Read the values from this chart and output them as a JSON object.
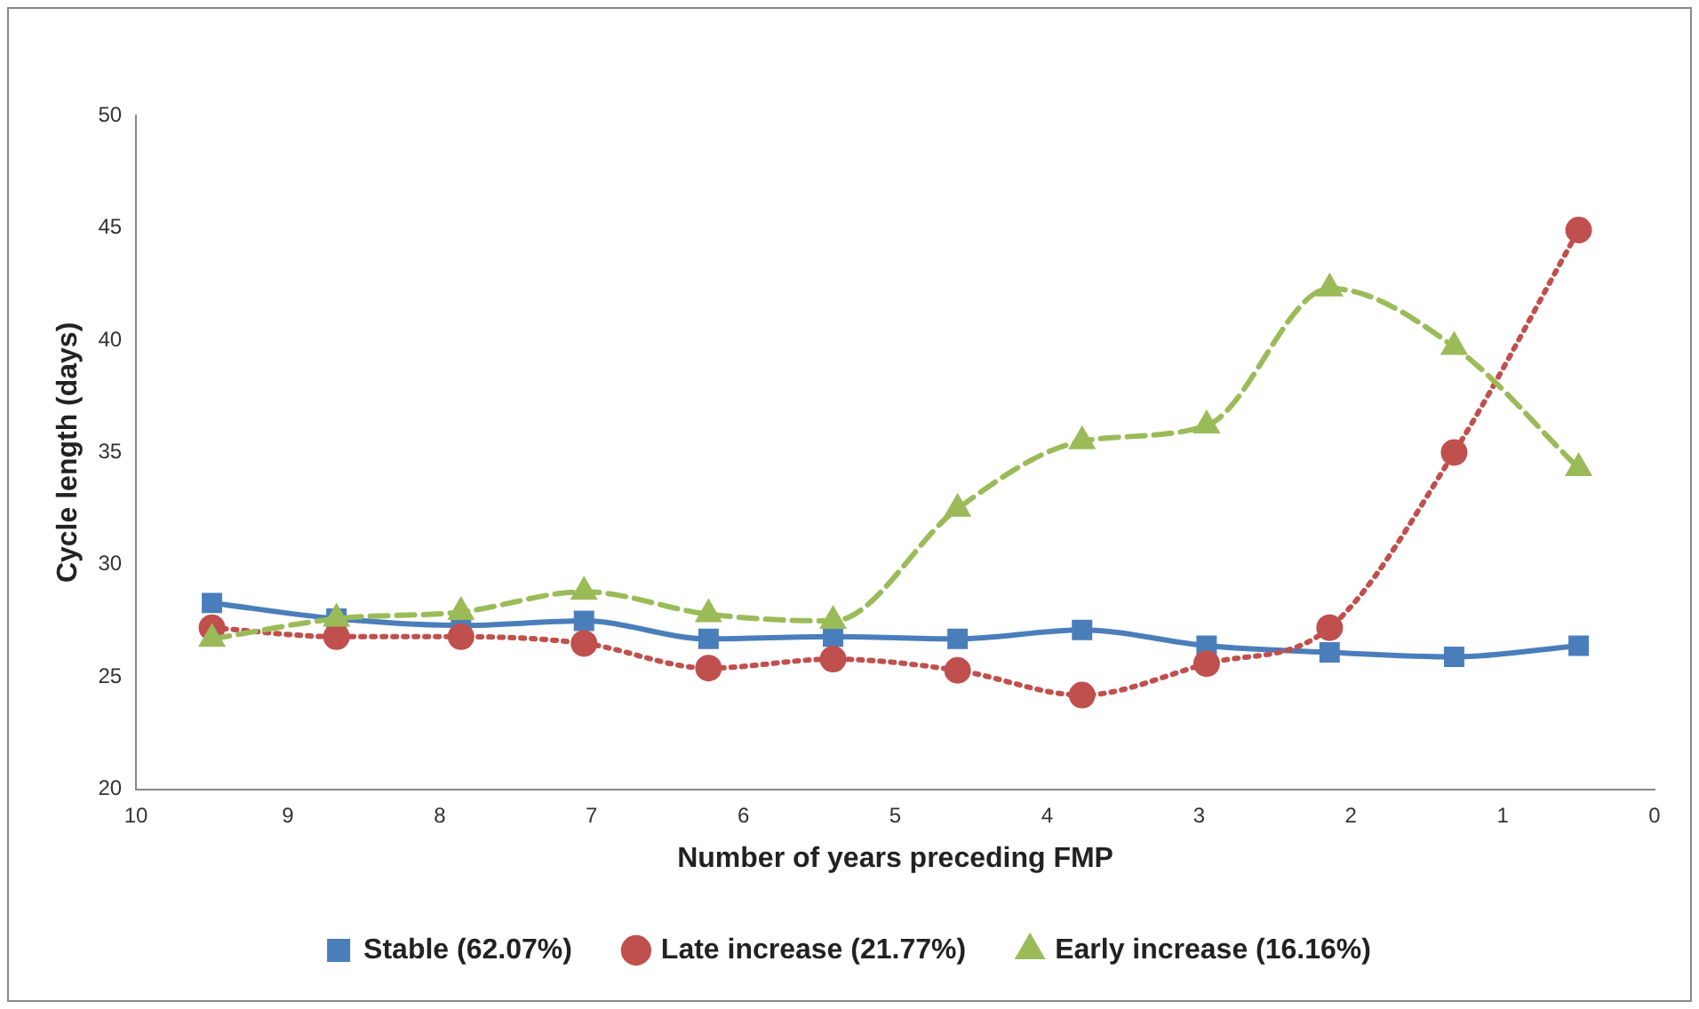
{
  "chart_data": {
    "type": "line",
    "xlabel": "Number of years preceding FMP",
    "ylabel": "Cycle length (days)",
    "x": [
      9.5,
      8.68,
      7.86,
      7.05,
      6.23,
      5.41,
      4.59,
      3.77,
      2.95,
      2.14,
      1.32,
      0.5
    ],
    "xlim": [
      10,
      0
    ],
    "xticks": [
      10,
      9,
      8,
      7,
      6,
      5,
      4,
      3,
      2,
      1,
      0
    ],
    "ylim": [
      20,
      50
    ],
    "yticks": [
      20,
      25,
      30,
      35,
      40,
      45,
      50
    ],
    "grid": false,
    "legend": "bottom",
    "series": [
      {
        "name": "Stable (62.07%)",
        "color": "#4a7ebb",
        "marker": "square",
        "line_style": "solid",
        "values": [
          28.3,
          27.6,
          27.3,
          27.5,
          26.7,
          26.8,
          26.7,
          27.1,
          26.4,
          26.1,
          25.9,
          26.4
        ]
      },
      {
        "name": "Late increase (21.77%)",
        "color": "#c0504d",
        "marker": "circle",
        "line_style": "dotted",
        "values": [
          27.2,
          26.8,
          26.8,
          26.5,
          25.4,
          25.8,
          25.3,
          24.2,
          25.6,
          27.2,
          35.0,
          44.9
        ]
      },
      {
        "name": "Early increase (16.16%)",
        "color": "#9bbb59",
        "marker": "triangle",
        "line_style": "dashed",
        "values": [
          26.7,
          27.6,
          27.9,
          28.8,
          27.8,
          27.5,
          32.5,
          35.5,
          36.2,
          42.3,
          39.7,
          34.3
        ]
      }
    ]
  }
}
